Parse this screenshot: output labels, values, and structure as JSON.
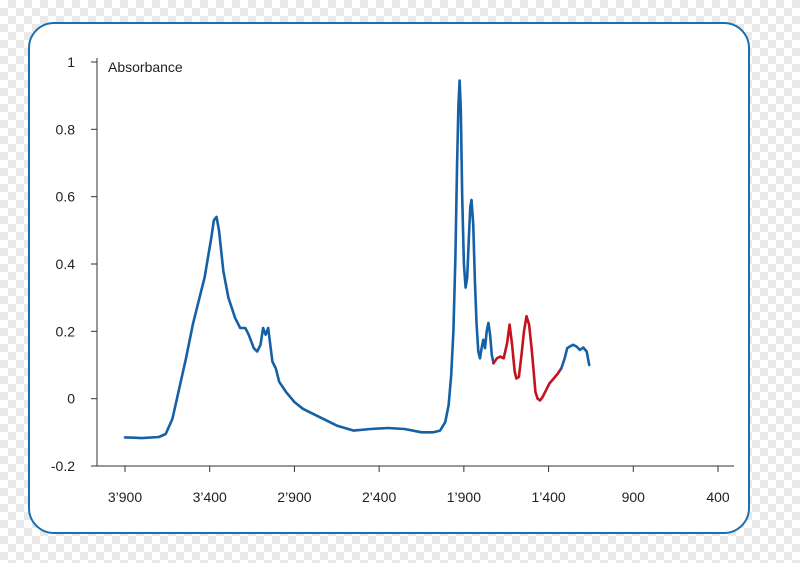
{
  "chart_data": {
    "type": "line",
    "title": "",
    "ylabel": "Absorbance",
    "xlabel": "",
    "xlim": [
      3980,
      380
    ],
    "ylim": [
      -0.2,
      1
    ],
    "x_reversed": true,
    "grid": false,
    "y_ticks": [
      {
        "value": -0.2,
        "label": "-0.2"
      },
      {
        "value": 0,
        "label": "0"
      },
      {
        "value": 0.2,
        "label": "0.2"
      },
      {
        "value": 0.4,
        "label": "0.4"
      },
      {
        "value": 0.6,
        "label": "0.6"
      },
      {
        "value": 0.8,
        "label": "0.8"
      },
      {
        "value": 1,
        "label": "1"
      }
    ],
    "x_ticks": [
      {
        "value": 3900,
        "label": "3’900"
      },
      {
        "value": 3400,
        "label": "3’400"
      },
      {
        "value": 2900,
        "label": "2’900"
      },
      {
        "value": 2400,
        "label": "2’400"
      },
      {
        "value": 1900,
        "label": "1’900"
      },
      {
        "value": 1400,
        "label": "1’400"
      },
      {
        "value": 900,
        "label": "900"
      },
      {
        "value": 400,
        "label": "400"
      }
    ],
    "series": [
      {
        "color": "#1660a6",
        "points": [
          [
            3900,
            -0.115
          ],
          [
            3800,
            -0.117
          ],
          [
            3700,
            -0.114
          ],
          [
            3660,
            -0.105
          ],
          [
            3620,
            -0.06
          ],
          [
            3580,
            0.03
          ],
          [
            3540,
            0.12
          ],
          [
            3500,
            0.22
          ],
          [
            3460,
            0.3
          ],
          [
            3430,
            0.36
          ],
          [
            3410,
            0.42
          ],
          [
            3390,
            0.48
          ],
          [
            3375,
            0.53
          ],
          [
            3360,
            0.54
          ],
          [
            3345,
            0.5
          ],
          [
            3320,
            0.38
          ],
          [
            3290,
            0.3
          ],
          [
            3250,
            0.24
          ],
          [
            3220,
            0.21
          ],
          [
            3190,
            0.21
          ],
          [
            3170,
            0.19
          ],
          [
            3140,
            0.15
          ],
          [
            3120,
            0.14
          ],
          [
            3100,
            0.16
          ],
          [
            3085,
            0.21
          ],
          [
            3070,
            0.19
          ],
          [
            3055,
            0.21
          ],
          [
            3040,
            0.15
          ],
          [
            3030,
            0.11
          ],
          [
            3020,
            0.1
          ],
          [
            3010,
            0.09
          ],
          [
            2990,
            0.05
          ],
          [
            2950,
            0.02
          ],
          [
            2900,
            -0.01
          ],
          [
            2850,
            -0.03
          ],
          [
            2750,
            -0.055
          ],
          [
            2650,
            -0.08
          ],
          [
            2550,
            -0.095
          ],
          [
            2450,
            -0.09
          ],
          [
            2350,
            -0.087
          ],
          [
            2250,
            -0.09
          ],
          [
            2150,
            -0.1
          ],
          [
            2080,
            -0.1
          ],
          [
            2040,
            -0.095
          ],
          [
            2010,
            -0.07
          ],
          [
            1990,
            -0.02
          ],
          [
            1975,
            0.07
          ],
          [
            1962,
            0.2
          ],
          [
            1950,
            0.42
          ],
          [
            1940,
            0.7
          ],
          [
            1932,
            0.87
          ],
          [
            1925,
            0.945
          ],
          [
            1918,
            0.86
          ],
          [
            1910,
            0.6
          ],
          [
            1900,
            0.4
          ],
          [
            1890,
            0.33
          ],
          [
            1880,
            0.36
          ],
          [
            1870,
            0.48
          ],
          [
            1862,
            0.57
          ],
          [
            1855,
            0.59
          ],
          [
            1845,
            0.52
          ],
          [
            1835,
            0.35
          ],
          [
            1825,
            0.22
          ],
          [
            1815,
            0.14
          ],
          [
            1805,
            0.12
          ],
          [
            1795,
            0.15
          ],
          [
            1785,
            0.175
          ],
          [
            1775,
            0.15
          ],
          [
            1765,
            0.2
          ],
          [
            1755,
            0.225
          ],
          [
            1745,
            0.19
          ],
          [
            1735,
            0.13
          ],
          [
            1725,
            0.105
          ]
        ]
      },
      {
        "color": "#c5121f",
        "points": [
          [
            1725,
            0.105
          ],
          [
            1705,
            0.12
          ],
          [
            1685,
            0.125
          ],
          [
            1665,
            0.12
          ],
          [
            1645,
            0.165
          ],
          [
            1630,
            0.22
          ],
          [
            1615,
            0.16
          ],
          [
            1600,
            0.08
          ],
          [
            1590,
            0.06
          ],
          [
            1575,
            0.065
          ],
          [
            1560,
            0.13
          ],
          [
            1545,
            0.2
          ],
          [
            1530,
            0.245
          ],
          [
            1515,
            0.22
          ],
          [
            1500,
            0.15
          ],
          [
            1488,
            0.08
          ],
          [
            1478,
            0.02
          ],
          [
            1465,
            0.0
          ],
          [
            1450,
            -0.005
          ],
          [
            1435,
            0.005
          ],
          [
            1415,
            0.025
          ],
          [
            1395,
            0.045
          ],
          [
            1370,
            0.06
          ],
          [
            1345,
            0.075
          ],
          [
            1325,
            0.09
          ]
        ]
      },
      {
        "color": "#1660a6",
        "points": [
          [
            1325,
            0.09
          ],
          [
            1305,
            0.12
          ],
          [
            1290,
            0.15
          ],
          [
            1275,
            0.155
          ],
          [
            1255,
            0.16
          ],
          [
            1235,
            0.155
          ],
          [
            1215,
            0.145
          ],
          [
            1195,
            0.152
          ],
          [
            1175,
            0.14
          ],
          [
            1160,
            0.1
          ]
        ]
      }
    ]
  }
}
